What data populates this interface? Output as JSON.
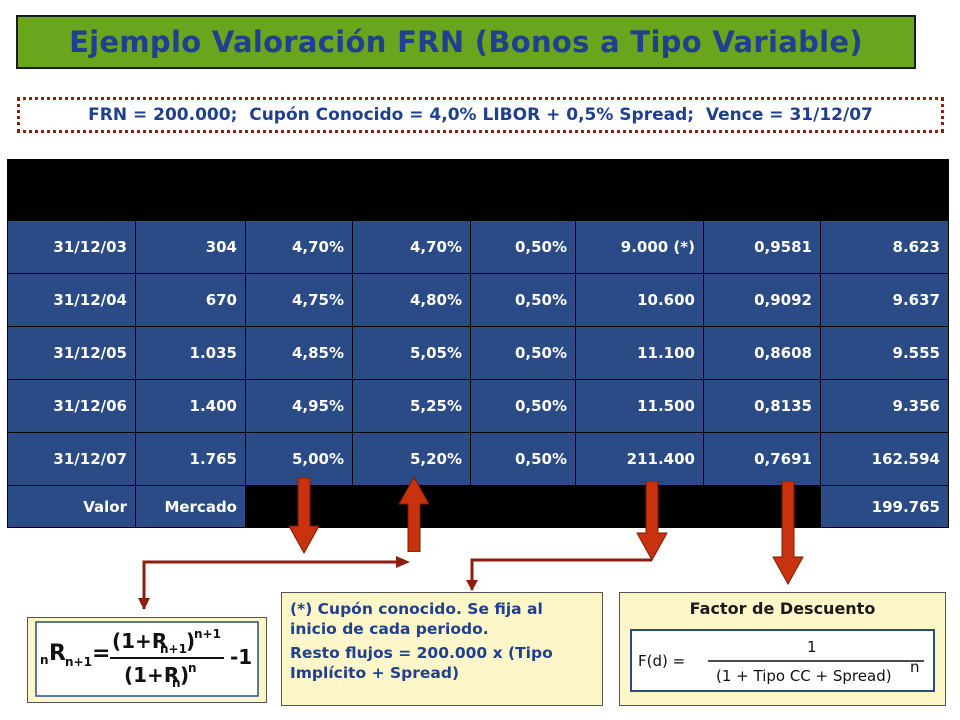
{
  "title": "Ejemplo Valoración FRN (Bonos a Tipo Variable)",
  "subtitle": "FRN = 200.000;  Cupón Conocido = 4,0% LIBOR + 0,5% Spread;  Vence = 31/12/07",
  "table": {
    "rows": [
      [
        "31/12/03",
        "304",
        "4,70%",
        "4,70%",
        "0,50%",
        "9.000 (*)",
        "0,9581",
        "8.623"
      ],
      [
        "31/12/04",
        "670",
        "4,75%",
        "4,80%",
        "0,50%",
        "10.600",
        "0,9092",
        "9.637"
      ],
      [
        "31/12/05",
        "1.035",
        "4,85%",
        "5,05%",
        "0,50%",
        "11.100",
        "0,8608",
        "9.555"
      ],
      [
        "31/12/06",
        "1.400",
        "4,95%",
        "5,25%",
        "0,50%",
        "11.500",
        "0,8135",
        "9.356"
      ],
      [
        "31/12/07",
        "1.765",
        "5,00%",
        "5,20%",
        "0,50%",
        "211.400",
        "0,7691",
        "162.594"
      ]
    ],
    "footer": {
      "label_1": "Valor",
      "label_2": "Mercado",
      "total": "199.765"
    }
  },
  "formula": {
    "lhs_pre": "n",
    "lhs_main": "R",
    "lhs_sub": "n+1",
    "equals": "=",
    "num_base": "(1+R",
    "num_sub": "n+1",
    "num_close": ")",
    "num_exp": "n+1",
    "den_base": "(1+R",
    "den_sub": "n",
    "den_close": ")",
    "den_exp": "n",
    "tail": "-1"
  },
  "note": {
    "line_1": "(*) Cupón conocido. Se fija al inicio de cada periodo.",
    "line_2": "Resto flujos = 200.000 x (Tipo Implícito + Spread)"
  },
  "factor": {
    "title": "Factor de Descuento",
    "lhs": "F(d) =",
    "numerator": "1",
    "denominator": "(1 + Tipo CC + Spread)",
    "exponent": "n"
  },
  "colors": {
    "title_bg": "#6aa51e",
    "title_text": "#1f3f8f",
    "table_cell": "#2a4b85",
    "arrow": "#c8320f",
    "dotted_border": "#8b1e0e",
    "box_bg": "#fdf6c8"
  }
}
